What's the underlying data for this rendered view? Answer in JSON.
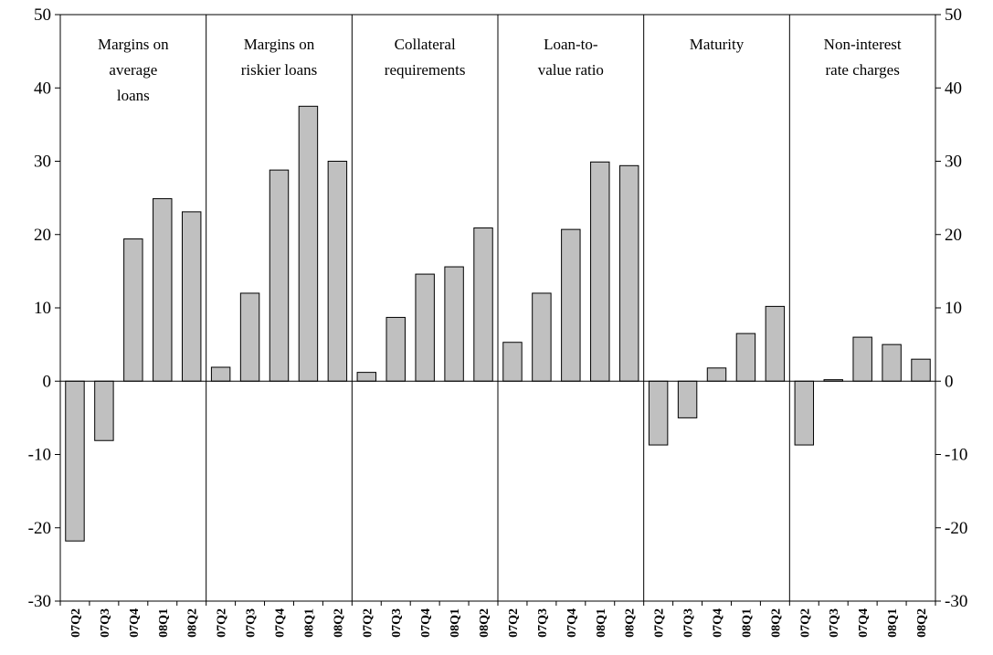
{
  "chart_data": {
    "type": "bar",
    "ylim": [
      -30,
      50
    ],
    "yticks": [
      -30,
      -20,
      -10,
      0,
      10,
      20,
      30,
      40,
      50
    ],
    "grid": false,
    "legend": "none",
    "colors": {
      "bar_fill": "#c0c0c0",
      "bar_stroke": "#000000",
      "axis": "#000000"
    },
    "categories": [
      "07Q2",
      "07Q3",
      "07Q4",
      "08Q1",
      "08Q2"
    ],
    "panels": [
      {
        "label": [
          "Margins on",
          "average",
          "loans"
        ],
        "values": [
          -21.8,
          -8.1,
          19.4,
          24.9,
          23.1
        ]
      },
      {
        "label": [
          "Margins on",
          "riskier loans"
        ],
        "values": [
          1.9,
          12.0,
          28.8,
          37.5,
          30.0
        ]
      },
      {
        "label": [
          "Collateral",
          "requirements"
        ],
        "values": [
          1.2,
          8.7,
          14.6,
          15.6,
          20.9
        ]
      },
      {
        "label": [
          "Loan-to-",
          "value ratio"
        ],
        "values": [
          5.3,
          12.0,
          20.7,
          29.9,
          29.4
        ]
      },
      {
        "label": [
          "Maturity"
        ],
        "values": [
          -8.7,
          -5.0,
          1.8,
          6.5,
          10.2
        ]
      },
      {
        "label": [
          "Non-interest",
          "rate charges"
        ],
        "values": [
          -8.7,
          0.2,
          6.0,
          5.0,
          3.0
        ]
      }
    ]
  }
}
